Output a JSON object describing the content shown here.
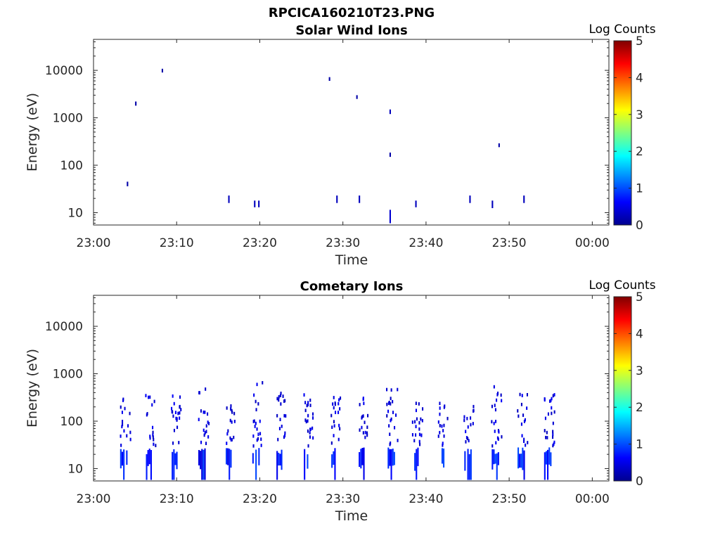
{
  "figure_title": "RPCICA160210T23.PNG",
  "chart_data": [
    {
      "type": "heatmap",
      "title": "Solar Wind Ions",
      "xlabel": "Time",
      "ylabel": "Energy (eV)",
      "y_scale": "log",
      "xticks": [
        "23:00",
        "23:10",
        "23:20",
        "23:30",
        "23:40",
        "23:50",
        "00:00"
      ],
      "xlim_minutes": [
        0,
        62
      ],
      "yticks": [
        10,
        100,
        1000,
        10000
      ],
      "ylim": [
        5.5,
        45000
      ],
      "colorbar": {
        "label": "Log Counts",
        "ticks": [
          0,
          1,
          2,
          3,
          4,
          5
        ],
        "range": [
          0,
          5
        ]
      },
      "cells": [
        {
          "t": 4.0,
          "e0": 36,
          "e1": 45,
          "v": 0.2
        },
        {
          "t": 5.0,
          "e0": 1800,
          "e1": 2200,
          "v": 0.2
        },
        {
          "t": 8.2,
          "e0": 9000,
          "e1": 10800,
          "v": 0.2
        },
        {
          "t": 16.2,
          "e0": 16,
          "e1": 23,
          "v": 0.3
        },
        {
          "t": 19.3,
          "e0": 13,
          "e1": 18,
          "v": 0.3
        },
        {
          "t": 19.8,
          "e0": 13,
          "e1": 18,
          "v": 0.3
        },
        {
          "t": 28.3,
          "e0": 6000,
          "e1": 7200,
          "v": 0.2
        },
        {
          "t": 29.2,
          "e0": 16,
          "e1": 23,
          "v": 0.3
        },
        {
          "t": 31.6,
          "e0": 2500,
          "e1": 3000,
          "v": 0.2
        },
        {
          "t": 31.9,
          "e0": 16,
          "e1": 23,
          "v": 0.3
        },
        {
          "t": 35.6,
          "e0": 1200,
          "e1": 1500,
          "v": 0.3
        },
        {
          "t": 35.6,
          "e0": 150,
          "e1": 185,
          "v": 0.2
        },
        {
          "t": 35.6,
          "e0": 6,
          "e1": 11.5,
          "v": 0.4
        },
        {
          "t": 38.7,
          "e0": 13,
          "e1": 18,
          "v": 0.3
        },
        {
          "t": 45.2,
          "e0": 16,
          "e1": 23,
          "v": 0.3
        },
        {
          "t": 47.9,
          "e0": 12.5,
          "e1": 18,
          "v": 0.3
        },
        {
          "t": 48.7,
          "e0": 240,
          "e1": 290,
          "v": 0.2
        },
        {
          "t": 51.7,
          "e0": 16,
          "e1": 23,
          "v": 0.3
        }
      ]
    },
    {
      "type": "heatmap",
      "title": "Cometary Ions",
      "xlabel": "Time",
      "ylabel": "Energy (eV)",
      "y_scale": "log",
      "xticks": [
        "23:00",
        "23:10",
        "23:20",
        "23:30",
        "23:40",
        "23:50",
        "00:00"
      ],
      "xlim_minutes": [
        0,
        62
      ],
      "yticks": [
        10,
        100,
        1000,
        10000
      ],
      "ylim": [
        5.5,
        45000
      ],
      "colorbar": {
        "label": "Log Counts",
        "ticks": [
          0,
          1,
          2,
          3,
          4,
          5
        ],
        "range": [
          0,
          5
        ]
      },
      "bursts": [
        {
          "t": 3.2,
          "w": 0.9,
          "e_max": 300,
          "v": 0.5
        },
        {
          "t": 6.3,
          "w": 0.8,
          "e_max": 400,
          "v": 0.55
        },
        {
          "t": 9.4,
          "w": 0.8,
          "e_max": 350,
          "v": 0.5
        },
        {
          "t": 12.6,
          "w": 0.9,
          "e_max": 500,
          "v": 0.45
        },
        {
          "t": 15.9,
          "w": 0.8,
          "e_max": 220,
          "v": 0.5
        },
        {
          "t": 19.1,
          "w": 0.9,
          "e_max": 650,
          "v": 0.5
        },
        {
          "t": 22.0,
          "w": 0.9,
          "e_max": 400,
          "v": 0.5
        },
        {
          "t": 25.3,
          "w": 0.8,
          "e_max": 360,
          "v": 0.55
        },
        {
          "t": 28.6,
          "w": 0.8,
          "e_max": 330,
          "v": 0.5
        },
        {
          "t": 31.9,
          "w": 0.8,
          "e_max": 330,
          "v": 0.45
        },
        {
          "t": 35.2,
          "w": 1.0,
          "e_max": 560,
          "v": 0.5
        },
        {
          "t": 38.4,
          "w": 0.8,
          "e_max": 250,
          "v": 0.45
        },
        {
          "t": 41.5,
          "w": 0.8,
          "e_max": 280,
          "v": 0.5
        },
        {
          "t": 44.6,
          "w": 0.9,
          "e_max": 280,
          "v": 0.55
        },
        {
          "t": 47.9,
          "w": 0.9,
          "e_max": 600,
          "v": 0.6
        },
        {
          "t": 51.0,
          "w": 0.9,
          "e_max": 480,
          "v": 0.5
        },
        {
          "t": 54.2,
          "w": 0.9,
          "e_max": 420,
          "v": 0.5
        }
      ]
    }
  ]
}
